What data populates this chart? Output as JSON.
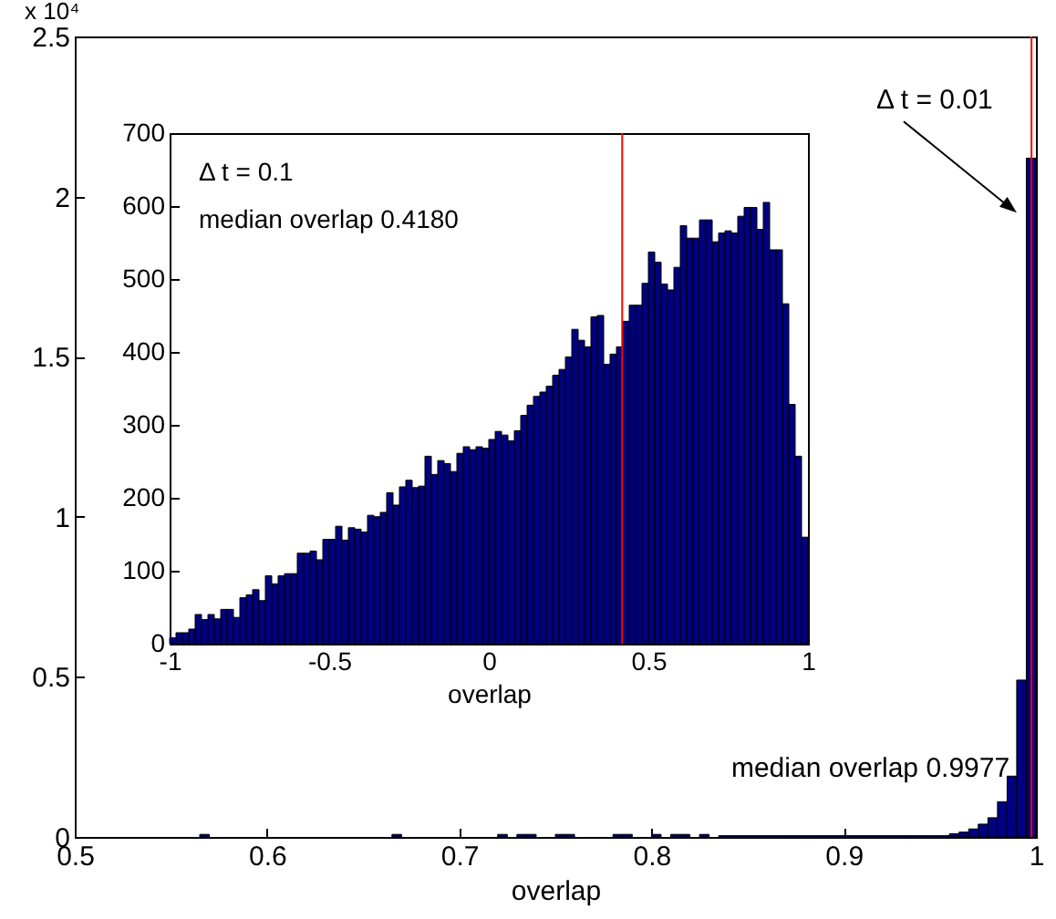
{
  "chart_data": [
    {
      "type": "histogram",
      "xlabel": "overlap",
      "ylabel": "x 10⁴",
      "color": "#000080",
      "bins": [
        0.5,
        0.505,
        0.51,
        0.515,
        0.52,
        0.525,
        0.53,
        0.535,
        0.54,
        0.545,
        0.55,
        0.555,
        0.56,
        0.565,
        0.57,
        0.575,
        0.58,
        0.585,
        0.59,
        0.595,
        0.6,
        0.605,
        0.61,
        0.615,
        0.62,
        0.625,
        0.63,
        0.635,
        0.64,
        0.645,
        0.65,
        0.655,
        0.66,
        0.665,
        0.67,
        0.675,
        0.68,
        0.685,
        0.69,
        0.695,
        0.7,
        0.705,
        0.71,
        0.715,
        0.72,
        0.725,
        0.73,
        0.735,
        0.74,
        0.745,
        0.75,
        0.755,
        0.76,
        0.765,
        0.77,
        0.775,
        0.78,
        0.785,
        0.79,
        0.795,
        0.8,
        0.805,
        0.81,
        0.815,
        0.82,
        0.825,
        0.83,
        0.835,
        0.84,
        0.845,
        0.85,
        0.855,
        0.86,
        0.865,
        0.87,
        0.875,
        0.88,
        0.885,
        0.89,
        0.895,
        0.9,
        0.905,
        0.91,
        0.915,
        0.92,
        0.925,
        0.93,
        0.935,
        0.94,
        0.945,
        0.95,
        0.955,
        0.96,
        0.965,
        0.97,
        0.975,
        0.98,
        0.985,
        0.99,
        0.995,
        1.0
      ],
      "values": [
        0,
        0,
        0,
        0,
        0,
        0,
        0,
        0,
        0,
        0,
        0,
        0,
        0,
        0.008,
        0,
        0,
        0,
        0,
        0,
        0,
        0,
        0,
        0,
        0,
        0,
        0,
        0,
        0,
        0,
        0,
        0,
        0,
        0,
        0.008,
        0,
        0,
        0,
        0,
        0,
        0,
        0,
        0,
        0,
        0,
        0.008,
        0,
        0.008,
        0.008,
        0,
        0,
        0.008,
        0.008,
        0,
        0,
        0,
        0,
        0.008,
        0.008,
        0,
        0,
        0.008,
        0,
        0.008,
        0.008,
        0,
        0.008,
        0,
        0.004,
        0.004,
        0.004,
        0.004,
        0.004,
        0.004,
        0.004,
        0.004,
        0.004,
        0.004,
        0.004,
        0.004,
        0.004,
        0.004,
        0.004,
        0.004,
        0.004,
        0.004,
        0.004,
        0.004,
        0.004,
        0.004,
        0.004,
        0.004,
        0.01,
        0.015,
        0.025,
        0.04,
        0.06,
        0.11,
        0.19,
        0.49,
        2.12
      ],
      "xlim": [
        0.5,
        1
      ],
      "xticks": [
        0.5,
        0.6,
        0.7,
        0.8,
        0.9,
        1
      ],
      "ylim": [
        0,
        2.5
      ],
      "yticks": [
        0,
        0.5,
        1,
        1.5,
        2,
        2.5
      ],
      "ref_lines": [
        {
          "axis": "x",
          "value": 0.9977,
          "label": "median overlap 0.9977",
          "color": "#ff0000"
        }
      ],
      "annotations": [
        {
          "text": "Δ t = 0.01",
          "x": 0.99,
          "y": 1.95
        }
      ]
    },
    {
      "type": "histogram",
      "xlabel": "overlap",
      "color": "#000080",
      "bins": [
        -1,
        -0.98,
        -0.96,
        -0.94,
        -0.92,
        -0.9,
        -0.88,
        -0.86,
        -0.84,
        -0.82,
        -0.8,
        -0.78,
        -0.76,
        -0.74,
        -0.72,
        -0.7,
        -0.68,
        -0.66,
        -0.64,
        -0.62,
        -0.6,
        -0.58,
        -0.56,
        -0.54,
        -0.52,
        -0.5,
        -0.48,
        -0.46,
        -0.44,
        -0.42,
        -0.4,
        -0.38,
        -0.36,
        -0.34,
        -0.32,
        -0.3,
        -0.28,
        -0.26,
        -0.24,
        -0.22,
        -0.2,
        -0.18,
        -0.16,
        -0.14,
        -0.12,
        -0.1,
        -0.08,
        -0.06,
        -0.04,
        -0.02,
        0,
        0.02,
        0.04,
        0.06,
        0.08,
        0.1,
        0.12,
        0.14,
        0.16,
        0.18,
        0.2,
        0.22,
        0.24,
        0.26,
        0.28,
        0.3,
        0.32,
        0.34,
        0.36,
        0.38,
        0.4,
        0.42,
        0.44,
        0.46,
        0.48,
        0.5,
        0.52,
        0.54,
        0.56,
        0.58,
        0.6,
        0.62,
        0.64,
        0.66,
        0.68,
        0.7,
        0.72,
        0.74,
        0.76,
        0.78,
        0.8,
        0.82,
        0.84,
        0.86,
        0.88,
        0.9,
        0.92,
        0.94,
        0.96,
        0.98,
        1
      ],
      "values": [
        8,
        15,
        15,
        20,
        40,
        33,
        40,
        34,
        47,
        47,
        36,
        63,
        67,
        74,
        59,
        93,
        82,
        93,
        96,
        96,
        124,
        124,
        127,
        115,
        143,
        143,
        161,
        142,
        159,
        157,
        153,
        176,
        174,
        180,
        207,
        190,
        215,
        224,
        214,
        216,
        257,
        232,
        251,
        247,
        236,
        261,
        270,
        266,
        270,
        268,
        280,
        291,
        286,
        278,
        292,
        313,
        327,
        339,
        345,
        353,
        368,
        376,
        393,
        431,
        416,
        407,
        448,
        450,
        383,
        397,
        407,
        442,
        464,
        464,
        494,
        537,
        523,
        493,
        485,
        516,
        573,
        556,
        556,
        581,
        581,
        551,
        563,
        566,
        563,
        586,
        598,
        598,
        568,
        605,
        540,
        540,
        466,
        328,
        257,
        146
      ],
      "xlim": [
        -1,
        1
      ],
      "xticks": [
        -1,
        -0.5,
        0,
        0.5,
        1
      ],
      "ylim": [
        0,
        700
      ],
      "yticks": [
        0,
        100,
        200,
        300,
        400,
        500,
        600,
        700
      ],
      "ref_lines": [
        {
          "axis": "x",
          "value": 0.418,
          "color": "#ff0000"
        }
      ],
      "annotations": [
        "Δ t = 0.1",
        "median overlap 0.4180"
      ]
    }
  ]
}
